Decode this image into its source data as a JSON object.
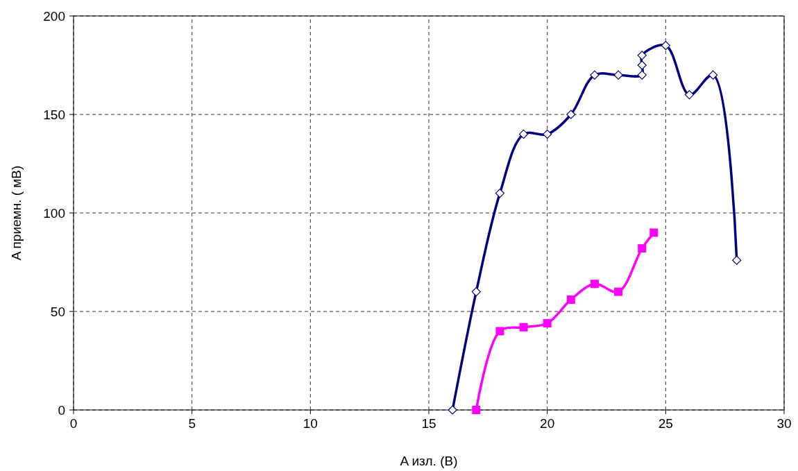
{
  "chart_data": {
    "type": "line",
    "xlabel": "A изл. (В)",
    "ylabel": "A приемн. ( мВ)",
    "xlim": [
      0,
      30
    ],
    "xticks": [
      0,
      5,
      10,
      15,
      20,
      25,
      30
    ],
    "ylim": [
      0,
      200
    ],
    "yticks": [
      0,
      50,
      100,
      150,
      200
    ],
    "grid": true,
    "series": [
      {
        "color": "#000080",
        "marker": "diamond",
        "x": [
          16,
          17,
          18,
          19,
          20,
          21,
          22,
          23,
          24,
          24,
          24,
          25,
          26,
          27,
          28
        ],
        "values": [
          0,
          60,
          110,
          140,
          140,
          150,
          170,
          170,
          170,
          175,
          180,
          185,
          160,
          170,
          76
        ]
      },
      {
        "color": "#ff00ff",
        "marker": "square",
        "x": [
          17,
          18,
          19,
          20,
          21,
          22,
          23,
          24,
          24.5
        ],
        "values": [
          0,
          40,
          42,
          44,
          56,
          64,
          60,
          82,
          90
        ]
      }
    ]
  }
}
